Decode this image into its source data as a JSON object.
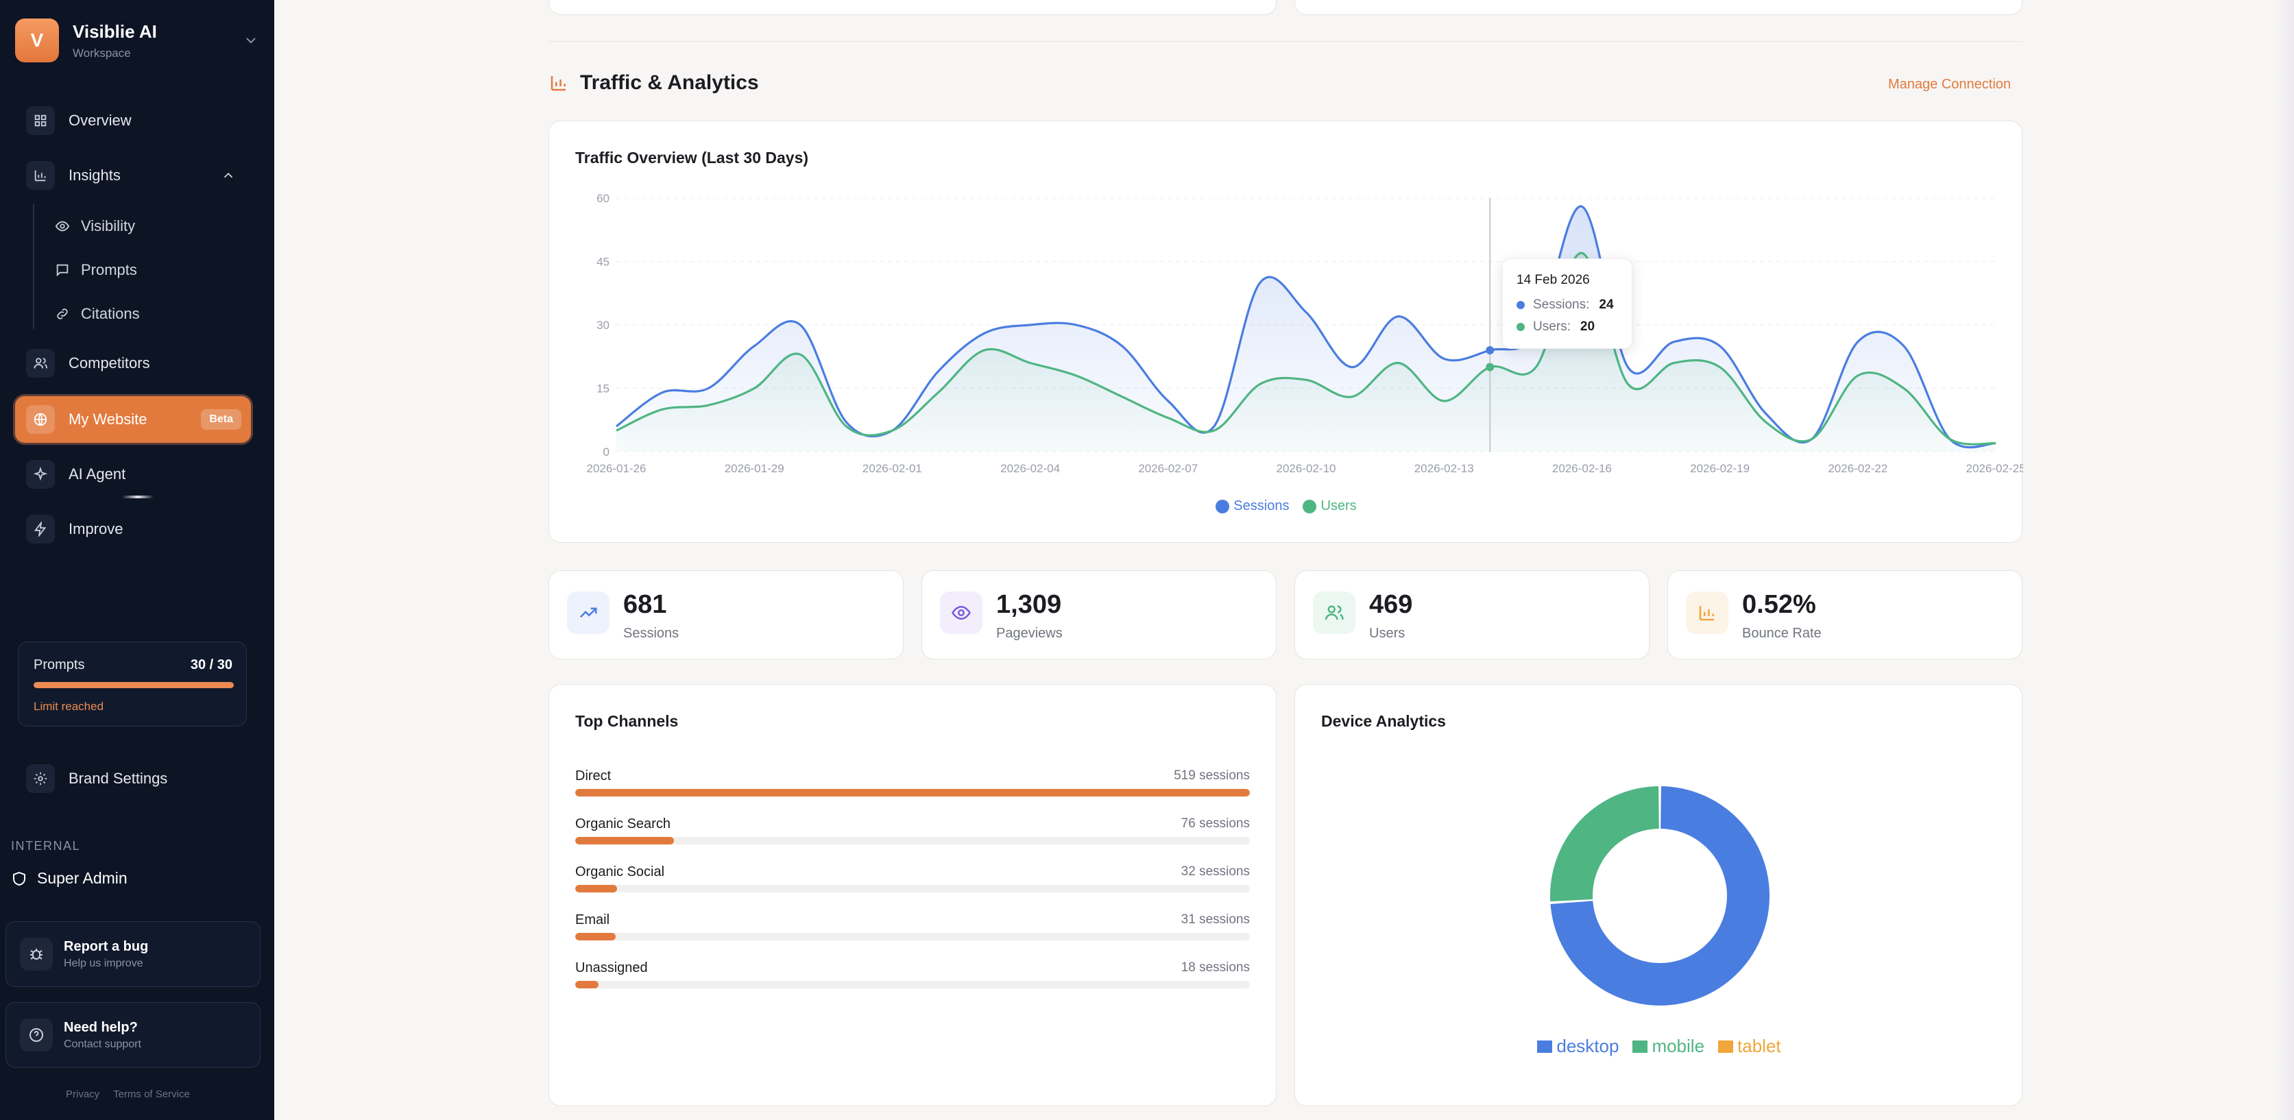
{
  "workspace": {
    "initial": "V",
    "name": "Visiblie AI",
    "subtitle": "Workspace"
  },
  "nav": {
    "overview": "Overview",
    "insights": "Insights",
    "sub": {
      "visibility": "Visibility",
      "prompts": "Prompts",
      "citations": "Citations"
    },
    "competitors": "Competitors",
    "my_website": "My Website",
    "beta": "Beta",
    "ai_agent": "AI Agent",
    "improve": "Improve",
    "brand_settings": "Brand Settings"
  },
  "quota": {
    "label": "Prompts",
    "value": "30 / 30",
    "used": 30,
    "total": 30,
    "warning": "Limit reached"
  },
  "internal": {
    "heading": "INTERNAL",
    "super_admin": "Super Admin"
  },
  "help": {
    "bug_title": "Report a bug",
    "bug_sub": "Help us improve",
    "support_title": "Need help?",
    "support_sub": "Contact support"
  },
  "legal": {
    "privacy": "Privacy",
    "terms": "Terms of Service"
  },
  "section": {
    "title": "Traffic & Analytics",
    "manage": "Manage Connection"
  },
  "chart_data": {
    "type": "area",
    "title": "Traffic Overview (Last 30 Days)",
    "xlabel": "",
    "ylabel": "",
    "ylim": [
      0,
      60
    ],
    "yticks": [
      0,
      15,
      30,
      45,
      60
    ],
    "xticks": [
      "2026-01-26",
      "2026-01-29",
      "2026-02-01",
      "2026-02-04",
      "2026-02-07",
      "2026-02-10",
      "2026-02-13",
      "2026-02-16",
      "2026-02-19",
      "2026-02-22",
      "2026-02-25"
    ],
    "x": [
      "2026-01-26",
      "2026-01-27",
      "2026-01-28",
      "2026-01-29",
      "2026-01-30",
      "2026-01-31",
      "2026-02-01",
      "2026-02-02",
      "2026-02-03",
      "2026-02-04",
      "2026-02-05",
      "2026-02-06",
      "2026-02-07",
      "2026-02-08",
      "2026-02-09",
      "2026-02-10",
      "2026-02-11",
      "2026-02-12",
      "2026-02-13",
      "2026-02-14",
      "2026-02-15",
      "2026-02-16",
      "2026-02-17",
      "2026-02-18",
      "2026-02-19",
      "2026-02-20",
      "2026-02-21",
      "2026-02-22",
      "2026-02-23",
      "2026-02-24",
      "2026-02-25"
    ],
    "series": [
      {
        "name": "Sessions",
        "color": "#4a7de0",
        "values": [
          6,
          14,
          15,
          25,
          30,
          7,
          5,
          19,
          28,
          30,
          30,
          25,
          12,
          6,
          40,
          33,
          20,
          32,
          22,
          24,
          28,
          58,
          20,
          26,
          25,
          9,
          3,
          26,
          25,
          3,
          2
        ]
      },
      {
        "name": "Users",
        "color": "#4fb583",
        "values": [
          5,
          10,
          11,
          15,
          23,
          6,
          5,
          14,
          24,
          21,
          18,
          13,
          8,
          5,
          16,
          17,
          13,
          21,
          12,
          20,
          20,
          47,
          16,
          21,
          20,
          7,
          3,
          18,
          15,
          3,
          2
        ]
      }
    ],
    "legend": "bottom",
    "tooltip": {
      "date": "14 Feb 2026",
      "sessions_label": "Sessions:",
      "sessions": 24,
      "users_label": "Users:",
      "users": 20
    }
  },
  "stats": [
    {
      "value": "681",
      "label": "Sessions",
      "icon": "trending-up-icon"
    },
    {
      "value": "1,309",
      "label": "Pageviews",
      "icon": "eye-icon"
    },
    {
      "value": "469",
      "label": "Users",
      "icon": "users-icon"
    },
    {
      "value": "0.52%",
      "label": "Bounce Rate",
      "icon": "bar-chart-icon"
    }
  ],
  "channels": {
    "title": "Top Channels",
    "max": 519,
    "items": [
      {
        "name": "Direct",
        "count": "519 sessions",
        "sessions": 519
      },
      {
        "name": "Organic Search",
        "count": "76 sessions",
        "sessions": 76
      },
      {
        "name": "Organic Social",
        "count": "32 sessions",
        "sessions": 32
      },
      {
        "name": "Email",
        "count": "31 sessions",
        "sessions": 31
      },
      {
        "name": "Unassigned",
        "count": "18 sessions",
        "sessions": 18
      }
    ]
  },
  "device_chart": {
    "type": "pie",
    "title": "Device Analytics",
    "categories": [
      "desktop",
      "mobile",
      "tablet"
    ],
    "values": [
      74,
      26,
      0
    ],
    "colors": [
      "#4a7de0",
      "#4fb583",
      "#f0a63a"
    ]
  },
  "colors": {
    "accent": "#e27a3e",
    "sidebar": "#0d1424",
    "sessions": "#4a7de0",
    "users": "#4fb583"
  }
}
